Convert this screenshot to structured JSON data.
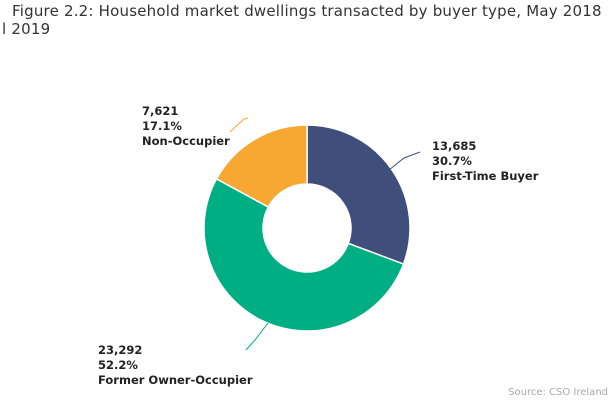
{
  "chart_data": {
    "type": "pie",
    "variant": "donut",
    "title_line1": "Figure 2.2: Household market dwellings transacted by buyer type, May 2018",
    "title_line2": "l 2019",
    "series": [
      {
        "name": "First-Time Buyer",
        "value": 13685,
        "value_label": "13,685",
        "percent_label": "30.7%",
        "color": "#3f4e7b"
      },
      {
        "name": "Former Owner-Occupier",
        "value": 23292,
        "value_label": "23,292",
        "percent_label": "52.2%",
        "color": "#00ae84"
      },
      {
        "name": "Non-Occupier",
        "value": 7621,
        "value_label": "7,621",
        "percent_label": "17.1%",
        "color": "#f7a833"
      }
    ],
    "source": "Source: CSO Ireland"
  }
}
